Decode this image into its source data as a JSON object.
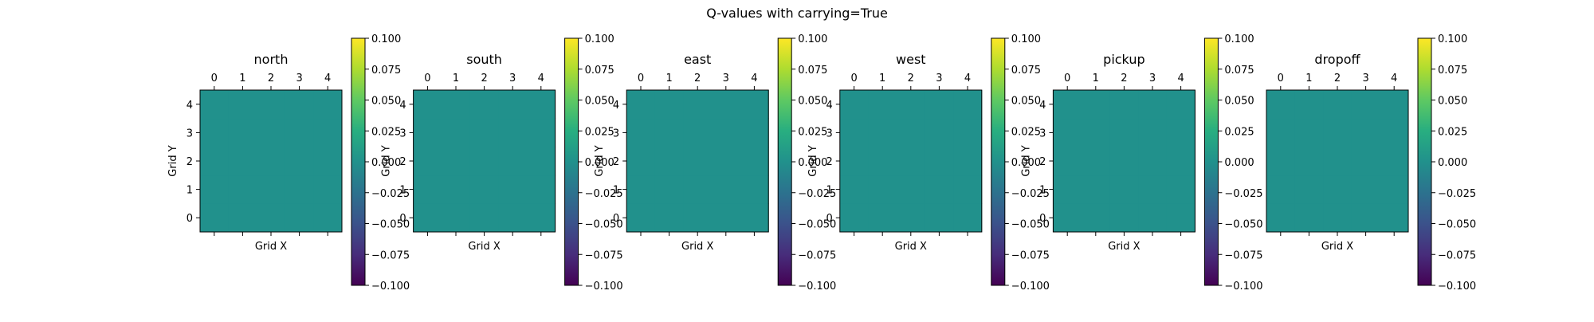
{
  "figure": {
    "title": "Q-values with carrying=True"
  },
  "chart_data": [
    {
      "type": "heatmap",
      "title": "north",
      "xlabel": "Grid X",
      "ylabel": "Grid Y",
      "x_ticks": [
        "0",
        "1",
        "2",
        "3",
        "4"
      ],
      "y_ticks": [
        "0",
        "1",
        "2",
        "3",
        "4"
      ],
      "values": [
        [
          0,
          0,
          0,
          0,
          0
        ],
        [
          0,
          0,
          0,
          0,
          0
        ],
        [
          0,
          0,
          0,
          0,
          0
        ],
        [
          0,
          0,
          0,
          0,
          0
        ],
        [
          0,
          0,
          0,
          0,
          0
        ]
      ],
      "colormap": "viridis",
      "cell_color": "#21918c",
      "colorbar_range": [
        -0.1,
        0.1
      ],
      "colorbar_ticks": [
        "−0.100",
        "−0.075",
        "−0.050",
        "−0.025",
        "0.000",
        "0.025",
        "0.050",
        "0.075",
        "0.100"
      ]
    },
    {
      "type": "heatmap",
      "title": "south",
      "xlabel": "Grid X",
      "ylabel": "Grid Y",
      "x_ticks": [
        "0",
        "1",
        "2",
        "3",
        "4"
      ],
      "y_ticks": [
        "0",
        "1",
        "2",
        "3",
        "4"
      ],
      "values": [
        [
          0,
          0,
          0,
          0,
          0
        ],
        [
          0,
          0,
          0,
          0,
          0
        ],
        [
          0,
          0,
          0,
          0,
          0
        ],
        [
          0,
          0,
          0,
          0,
          0
        ],
        [
          0,
          0,
          0,
          0,
          0
        ]
      ],
      "colormap": "viridis",
      "cell_color": "#21918c",
      "colorbar_range": [
        -0.1,
        0.1
      ],
      "colorbar_ticks": [
        "−0.100",
        "−0.075",
        "−0.050",
        "−0.025",
        "0.000",
        "0.025",
        "0.050",
        "0.075",
        "0.100"
      ]
    },
    {
      "type": "heatmap",
      "title": "east",
      "xlabel": "Grid X",
      "ylabel": "Grid Y",
      "x_ticks": [
        "0",
        "1",
        "2",
        "3",
        "4"
      ],
      "y_ticks": [
        "0",
        "1",
        "2",
        "3",
        "4"
      ],
      "values": [
        [
          0,
          0,
          0,
          0,
          0
        ],
        [
          0,
          0,
          0,
          0,
          0
        ],
        [
          0,
          0,
          0,
          0,
          0
        ],
        [
          0,
          0,
          0,
          0,
          0
        ],
        [
          0,
          0,
          0,
          0,
          0
        ]
      ],
      "colormap": "viridis",
      "cell_color": "#21918c",
      "colorbar_range": [
        -0.1,
        0.1
      ],
      "colorbar_ticks": [
        "−0.100",
        "−0.075",
        "−0.050",
        "−0.025",
        "0.000",
        "0.025",
        "0.050",
        "0.075",
        "0.100"
      ]
    },
    {
      "type": "heatmap",
      "title": "west",
      "xlabel": "Grid X",
      "ylabel": "Grid Y",
      "x_ticks": [
        "0",
        "1",
        "2",
        "3",
        "4"
      ],
      "y_ticks": [
        "0",
        "1",
        "2",
        "3",
        "4"
      ],
      "values": [
        [
          0,
          0,
          0,
          0,
          0
        ],
        [
          0,
          0,
          0,
          0,
          0
        ],
        [
          0,
          0,
          0,
          0,
          0
        ],
        [
          0,
          0,
          0,
          0,
          0
        ],
        [
          0,
          0,
          0,
          0,
          0
        ]
      ],
      "colormap": "viridis",
      "cell_color": "#21918c",
      "colorbar_range": [
        -0.1,
        0.1
      ],
      "colorbar_ticks": [
        "−0.100",
        "−0.075",
        "−0.050",
        "−0.025",
        "0.000",
        "0.025",
        "0.050",
        "0.075",
        "0.100"
      ]
    },
    {
      "type": "heatmap",
      "title": "pickup",
      "xlabel": "Grid X",
      "ylabel": "Grid Y",
      "x_ticks": [
        "0",
        "1",
        "2",
        "3",
        "4"
      ],
      "y_ticks": [
        "0",
        "1",
        "2",
        "3",
        "4"
      ],
      "values": [
        [
          0,
          0,
          0,
          0,
          0
        ],
        [
          0,
          0,
          0,
          0,
          0
        ],
        [
          0,
          0,
          0,
          0,
          0
        ],
        [
          0,
          0,
          0,
          0,
          0
        ],
        [
          0,
          0,
          0,
          0,
          0
        ]
      ],
      "colormap": "viridis",
      "cell_color": "#21918c",
      "colorbar_range": [
        -0.1,
        0.1
      ],
      "colorbar_ticks": [
        "−0.100",
        "−0.075",
        "−0.050",
        "−0.025",
        "0.000",
        "0.025",
        "0.050",
        "0.075",
        "0.100"
      ]
    },
    {
      "type": "heatmap",
      "title": "dropoff",
      "xlabel": "Grid X",
      "ylabel": "",
      "x_ticks": [
        "0",
        "1",
        "2",
        "3",
        "4"
      ],
      "y_ticks": [],
      "values": [
        [
          0,
          0,
          0,
          0,
          0
        ],
        [
          0,
          0,
          0,
          0,
          0
        ],
        [
          0,
          0,
          0,
          0,
          0
        ],
        [
          0,
          0,
          0,
          0,
          0
        ],
        [
          0,
          0,
          0,
          0,
          0
        ]
      ],
      "colormap": "viridis",
      "cell_color": "#21918c",
      "colorbar_range": [
        -0.1,
        0.1
      ],
      "colorbar_ticks": [
        "−0.100",
        "−0.075",
        "−0.050",
        "−0.025",
        "0.000",
        "0.025",
        "0.050",
        "0.075",
        "0.100"
      ]
    }
  ]
}
